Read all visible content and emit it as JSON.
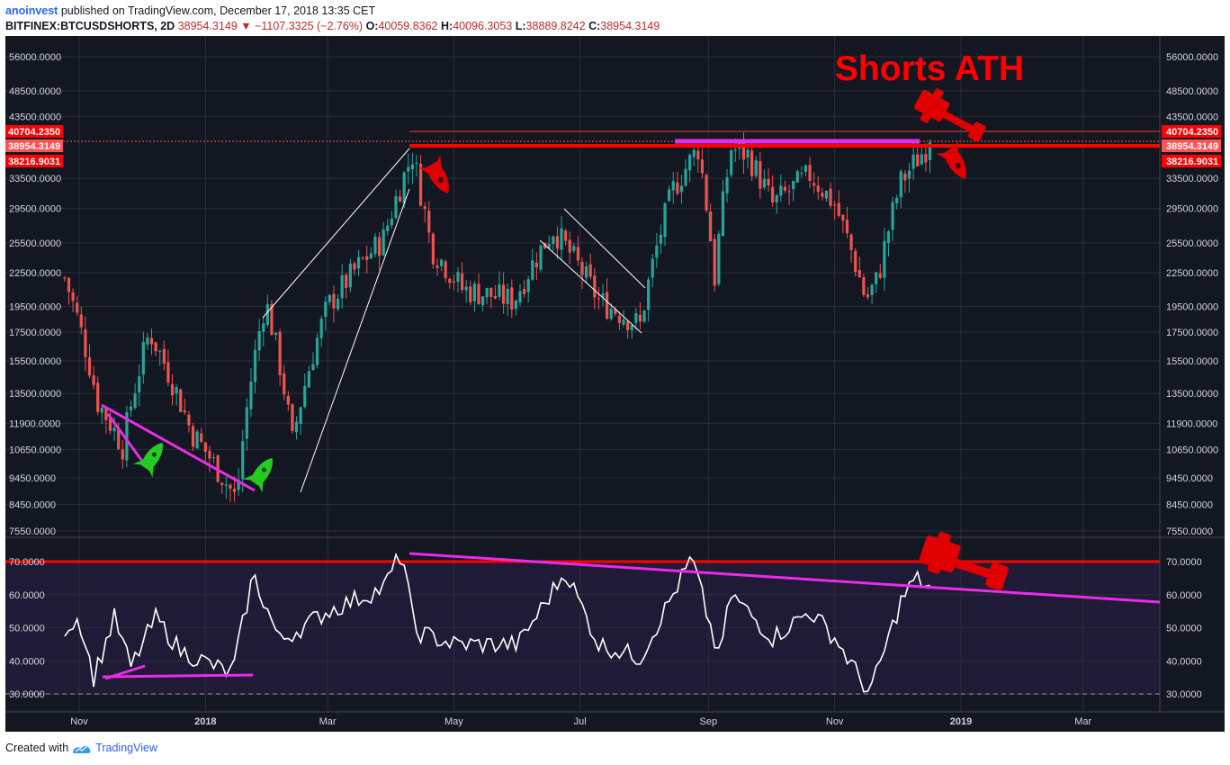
{
  "header": {
    "author": "anoinvest",
    "published_text": " published on TradingView.com, December 17, 2018 13:35 CET",
    "symbol": "BITFINEX:BTCUSDSHORTS, 2D",
    "price": "38954.3149",
    "change_arrow": "▼",
    "change": "−1107.3325 (−2.76%)",
    "o_label": "O:",
    "o_val": "40059.8362",
    "h_label": "H:",
    "h_val": "40096.3053",
    "l_label": "L:",
    "l_val": "38889.8242",
    "c_label": "C:",
    "c_val": "38954.3149"
  },
  "annotation_text": "Shorts ATH",
  "footer": {
    "created_with": "Created with",
    "brand": "TradingView"
  },
  "colors": {
    "panel_bg": "#131722",
    "rsi_bg": "#1f1a35",
    "grid": "#2a2e39",
    "up": "#26a69a",
    "down": "#ef5350",
    "red": "#ff0000",
    "magenta": "#e92ce9",
    "white": "#ffffff",
    "rocket_green": "#22cc22",
    "hammer_red": "#e00000"
  },
  "chart_data": [
    {
      "type": "candlestick",
      "scale": "log",
      "ylim": [
        7550,
        56000
      ],
      "y_ticks": [
        "56000.0000",
        "48500.0000",
        "43500.0000",
        "33500.0000",
        "29500.0000",
        "25500.0000",
        "22500.0000",
        "19500.0000",
        "17500.0000",
        "15500.0000",
        "13500.0000",
        "11900.0000",
        "10650.0000",
        "9450.0000",
        "8450.0000",
        "7550.0000"
      ],
      "price_badges": [
        "40704.2350",
        "38954.3149",
        "38216.9031"
      ],
      "x_ticks": [
        "Nov",
        "2018",
        "Mar",
        "May",
        "Jul",
        "Sep",
        "Nov",
        "2019",
        "Mar"
      ],
      "path_anchors": [
        {
          "x": "2017-10-25",
          "y": 22000
        },
        {
          "x": "2017-11-10",
          "y": 13000
        },
        {
          "x": "2017-11-22",
          "y": 10800
        },
        {
          "x": "2017-12-05",
          "y": 17500
        },
        {
          "x": "2017-12-25",
          "y": 11500
        },
        {
          "x": "2018-01-16",
          "y": 8600
        },
        {
          "x": "2018-01-30",
          "y": 20000
        },
        {
          "x": "2018-02-12",
          "y": 11000
        },
        {
          "x": "2018-03-01",
          "y": 19500
        },
        {
          "x": "2018-03-28",
          "y": 26000
        },
        {
          "x": "2018-04-11",
          "y": 37000
        },
        {
          "x": "2018-04-20",
          "y": 25000
        },
        {
          "x": "2018-05-05",
          "y": 21000
        },
        {
          "x": "2018-05-30",
          "y": 20000
        },
        {
          "x": "2018-06-18",
          "y": 27000
        },
        {
          "x": "2018-07-10",
          "y": 20000
        },
        {
          "x": "2018-07-30",
          "y": 18000
        },
        {
          "x": "2018-08-15",
          "y": 32000
        },
        {
          "x": "2018-08-27",
          "y": 38000
        },
        {
          "x": "2018-09-04",
          "y": 22000
        },
        {
          "x": "2018-09-12",
          "y": 38000
        },
        {
          "x": "2018-09-20",
          "y": 37000
        },
        {
          "x": "2018-10-02",
          "y": 30000
        },
        {
          "x": "2018-10-20",
          "y": 34000
        },
        {
          "x": "2018-11-01",
          "y": 30000
        },
        {
          "x": "2018-11-16",
          "y": 20000
        },
        {
          "x": "2018-11-22",
          "y": 22000
        },
        {
          "x": "2018-12-03",
          "y": 33000
        },
        {
          "x": "2018-12-17",
          "y": 38954
        }
      ],
      "levels": [
        40704.235,
        38954.3149,
        38216.9031
      ]
    },
    {
      "type": "line",
      "ylim": [
        30,
        70
      ],
      "y_ticks": [
        "70.0000",
        "60.0000",
        "50.0000",
        "40.0000",
        "30.0000"
      ],
      "path_anchors": [
        {
          "x": "2017-10-25",
          "y": 50
        },
        {
          "x": "2017-11-01",
          "y": 53
        },
        {
          "x": "2017-11-08",
          "y": 35
        },
        {
          "x": "2017-11-18",
          "y": 53
        },
        {
          "x": "2017-11-26",
          "y": 38
        },
        {
          "x": "2017-12-08",
          "y": 53
        },
        {
          "x": "2017-12-20",
          "y": 43
        },
        {
          "x": "2018-01-14",
          "y": 36
        },
        {
          "x": "2018-01-24",
          "y": 66
        },
        {
          "x": "2018-02-06",
          "y": 46
        },
        {
          "x": "2018-03-01",
          "y": 55
        },
        {
          "x": "2018-03-28",
          "y": 62
        },
        {
          "x": "2018-04-06",
          "y": 73
        },
        {
          "x": "2018-04-12",
          "y": 49
        },
        {
          "x": "2018-05-01",
          "y": 45
        },
        {
          "x": "2018-06-01",
          "y": 45
        },
        {
          "x": "2018-06-24",
          "y": 67
        },
        {
          "x": "2018-07-10",
          "y": 45
        },
        {
          "x": "2018-07-30",
          "y": 41
        },
        {
          "x": "2018-08-24",
          "y": 71
        },
        {
          "x": "2018-09-06",
          "y": 41
        },
        {
          "x": "2018-09-12",
          "y": 60
        },
        {
          "x": "2018-10-02",
          "y": 47
        },
        {
          "x": "2018-10-20",
          "y": 55
        },
        {
          "x": "2018-11-01",
          "y": 47
        },
        {
          "x": "2018-11-18",
          "y": 30
        },
        {
          "x": "2018-12-03",
          "y": 58
        },
        {
          "x": "2018-12-10",
          "y": 65
        },
        {
          "x": "2018-12-17",
          "y": 62
        }
      ],
      "levels": [
        70,
        30
      ]
    }
  ]
}
